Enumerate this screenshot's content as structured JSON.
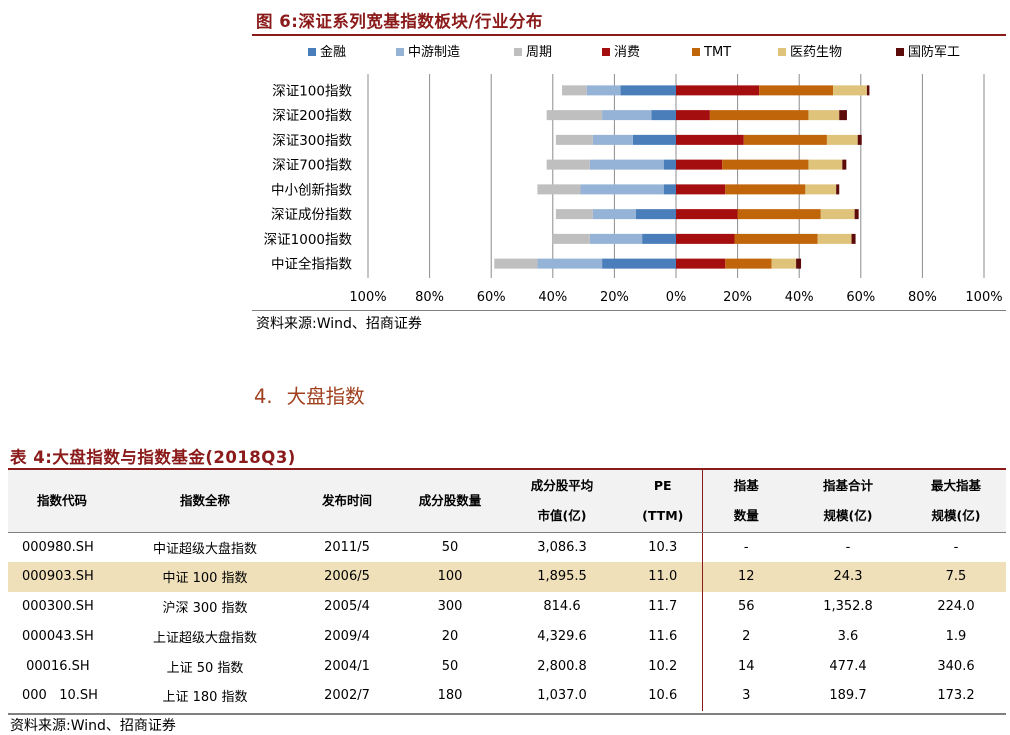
{
  "figure": {
    "title": "图 6:深证系列宽基指数板块/行业分布",
    "source": "资料来源:Wind、招商证券"
  },
  "chart_data": {
    "type": "bar",
    "orientation": "horizontal",
    "stacked": true,
    "diverging": true,
    "categories": [
      "深证100指数",
      "深证200指数",
      "深证300指数",
      "深证700指数",
      "中小创新指数",
      "深证成份指数",
      "深证1000指数",
      "中证全指指数"
    ],
    "x_ticks": [
      "100%",
      "80%",
      "60%",
      "40%",
      "20%",
      "0%",
      "20%",
      "40%",
      "60%",
      "80%",
      "100%"
    ],
    "xlim": [
      -100,
      100
    ],
    "grid": true,
    "legend_position": "top",
    "series": [
      {
        "name": "金融",
        "side": "left",
        "color": "#4a7ebb",
        "values": [
          18,
          8,
          14,
          4,
          4,
          13,
          11,
          24
        ]
      },
      {
        "name": "中游制造",
        "side": "left",
        "color": "#95b3d7",
        "values": [
          11,
          16,
          13,
          24,
          27,
          14,
          17,
          21
        ]
      },
      {
        "name": "周期",
        "side": "left",
        "color": "#bfbfbf",
        "values": [
          8,
          18,
          12,
          14,
          14,
          12,
          12,
          14
        ]
      },
      {
        "name": "消费",
        "side": "right",
        "color": "#a50e0e",
        "values": [
          27,
          11,
          22,
          15,
          16,
          20,
          19,
          16
        ]
      },
      {
        "name": "TMT",
        "side": "right",
        "color": "#c0650a",
        "values": [
          24,
          32,
          27,
          28,
          26,
          27,
          27,
          15
        ]
      },
      {
        "name": "医药生物",
        "side": "right",
        "color": "#dfc37a",
        "values": [
          11,
          10,
          10,
          11,
          10,
          11,
          11,
          8
        ]
      },
      {
        "name": "国防军工",
        "side": "right",
        "color": "#5c0a0a",
        "values": [
          0.8,
          2.5,
          1.3,
          1.3,
          1.0,
          1.3,
          1.3,
          1.6
        ]
      }
    ]
  },
  "section": {
    "number": "4.",
    "title": "大盘指数"
  },
  "table": {
    "title": "表 4:大盘指数与指数基金(2018Q3)",
    "headers": {
      "code": "指数代码",
      "name": "指数全称",
      "date": "发布时间",
      "count": "成分股数量",
      "mcap_1": "成分股平均",
      "mcap_2": "市值(亿)",
      "pe_1": "PE",
      "pe_2": "(TTM)",
      "fund_1": "指基",
      "fund_2": "数量",
      "total_1": "指基合计",
      "total_2": "规模(亿)",
      "max_1": "最大指基",
      "max_2": "规模(亿)"
    },
    "rows": [
      {
        "code": "000980.SH",
        "name": "中证超级大盘指数",
        "date": "2011/5",
        "count": "50",
        "mcap": "3,086.3",
        "pe": "10.3",
        "funds": "-",
        "total": "-",
        "max": "-"
      },
      {
        "code": "000903.SH",
        "name": "中证 100 指数",
        "date": "2006/5",
        "count": "100",
        "mcap": "1,895.5",
        "pe": "11.0",
        "funds": "12",
        "total": "24.3",
        "max": "7.5"
      },
      {
        "code": "000300.SH",
        "name": "沪深 300 指数",
        "date": "2005/4",
        "count": "300",
        "mcap": "814.6",
        "pe": "11.7",
        "funds": "56",
        "total": "1,352.8",
        "max": "224.0"
      },
      {
        "code": "000043.SH",
        "name": "上证超级大盘指数",
        "date": "2009/4",
        "count": "20",
        "mcap": "4,329.6",
        "pe": "11.6",
        "funds": "2",
        "total": "3.6",
        "max": "1.9"
      },
      {
        "code": " 00016.SH",
        "name": "上证 50 指数",
        "date": "2004/1",
        "count": "50",
        "mcap": "2,800.8",
        "pe": "10.2",
        "funds": "14",
        "total": "477.4",
        "max": "340.6"
      },
      {
        "code": "000   10.SH",
        "name": "上证 180 指数",
        "date": "2002/7",
        "count": "180",
        "mcap": "1,037.0",
        "pe": "10.6",
        "funds": "3",
        "total": "189.7",
        "max": "173.2"
      }
    ],
    "highlight_row_color": "#efe0b9",
    "source": "资料来源:Wind、招商证券"
  }
}
